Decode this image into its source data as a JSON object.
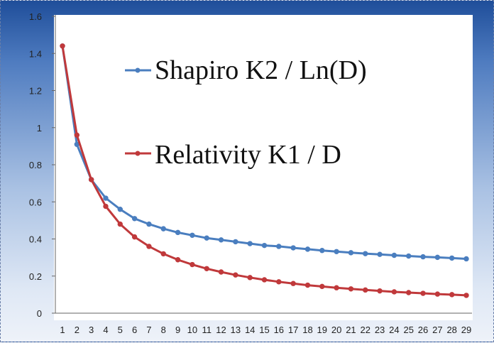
{
  "chart_data": {
    "type": "line",
    "title": "",
    "xlabel": "",
    "ylabel": "",
    "x": [
      1,
      2,
      3,
      4,
      5,
      6,
      7,
      8,
      9,
      10,
      11,
      12,
      13,
      14,
      15,
      16,
      17,
      18,
      19,
      20,
      21,
      22,
      23,
      24,
      25,
      26,
      27,
      28,
      29
    ],
    "ylim": [
      0,
      1.6
    ],
    "yticks": [
      "0",
      "0.2",
      "0.4",
      "0.6",
      "0.8",
      "1",
      "1.2",
      "1.4",
      "1.6"
    ],
    "xticks": [
      "1",
      "2",
      "3",
      "4",
      "5",
      "6",
      "7",
      "8",
      "9",
      "10",
      "11",
      "12",
      "13",
      "14",
      "15",
      "16",
      "17",
      "18",
      "19",
      "20",
      "21",
      "22",
      "23",
      "24",
      "25",
      "26",
      "27",
      "28",
      "29"
    ],
    "grid": false,
    "legend_placement": "inside-top-right",
    "series": [
      {
        "name": "Shapiro  K2 / Ln(D)",
        "color": "#4a7ebf",
        "values": [
          1.44,
          0.91,
          0.72,
          0.62,
          0.56,
          0.51,
          0.48,
          0.455,
          0.435,
          0.42,
          0.405,
          0.395,
          0.385,
          0.375,
          0.365,
          0.36,
          0.352,
          0.345,
          0.338,
          0.332,
          0.326,
          0.321,
          0.317,
          0.312,
          0.308,
          0.304,
          0.301,
          0.297,
          0.293
        ]
      },
      {
        "name": "Relativity K1 /  D",
        "color": "#c0393b",
        "values": [
          1.44,
          0.96,
          0.72,
          0.576,
          0.48,
          0.411,
          0.36,
          0.32,
          0.288,
          0.262,
          0.24,
          0.222,
          0.206,
          0.192,
          0.18,
          0.169,
          0.16,
          0.151,
          0.144,
          0.137,
          0.131,
          0.125,
          0.12,
          0.115,
          0.111,
          0.107,
          0.103,
          0.1,
          0.096
        ]
      }
    ]
  }
}
